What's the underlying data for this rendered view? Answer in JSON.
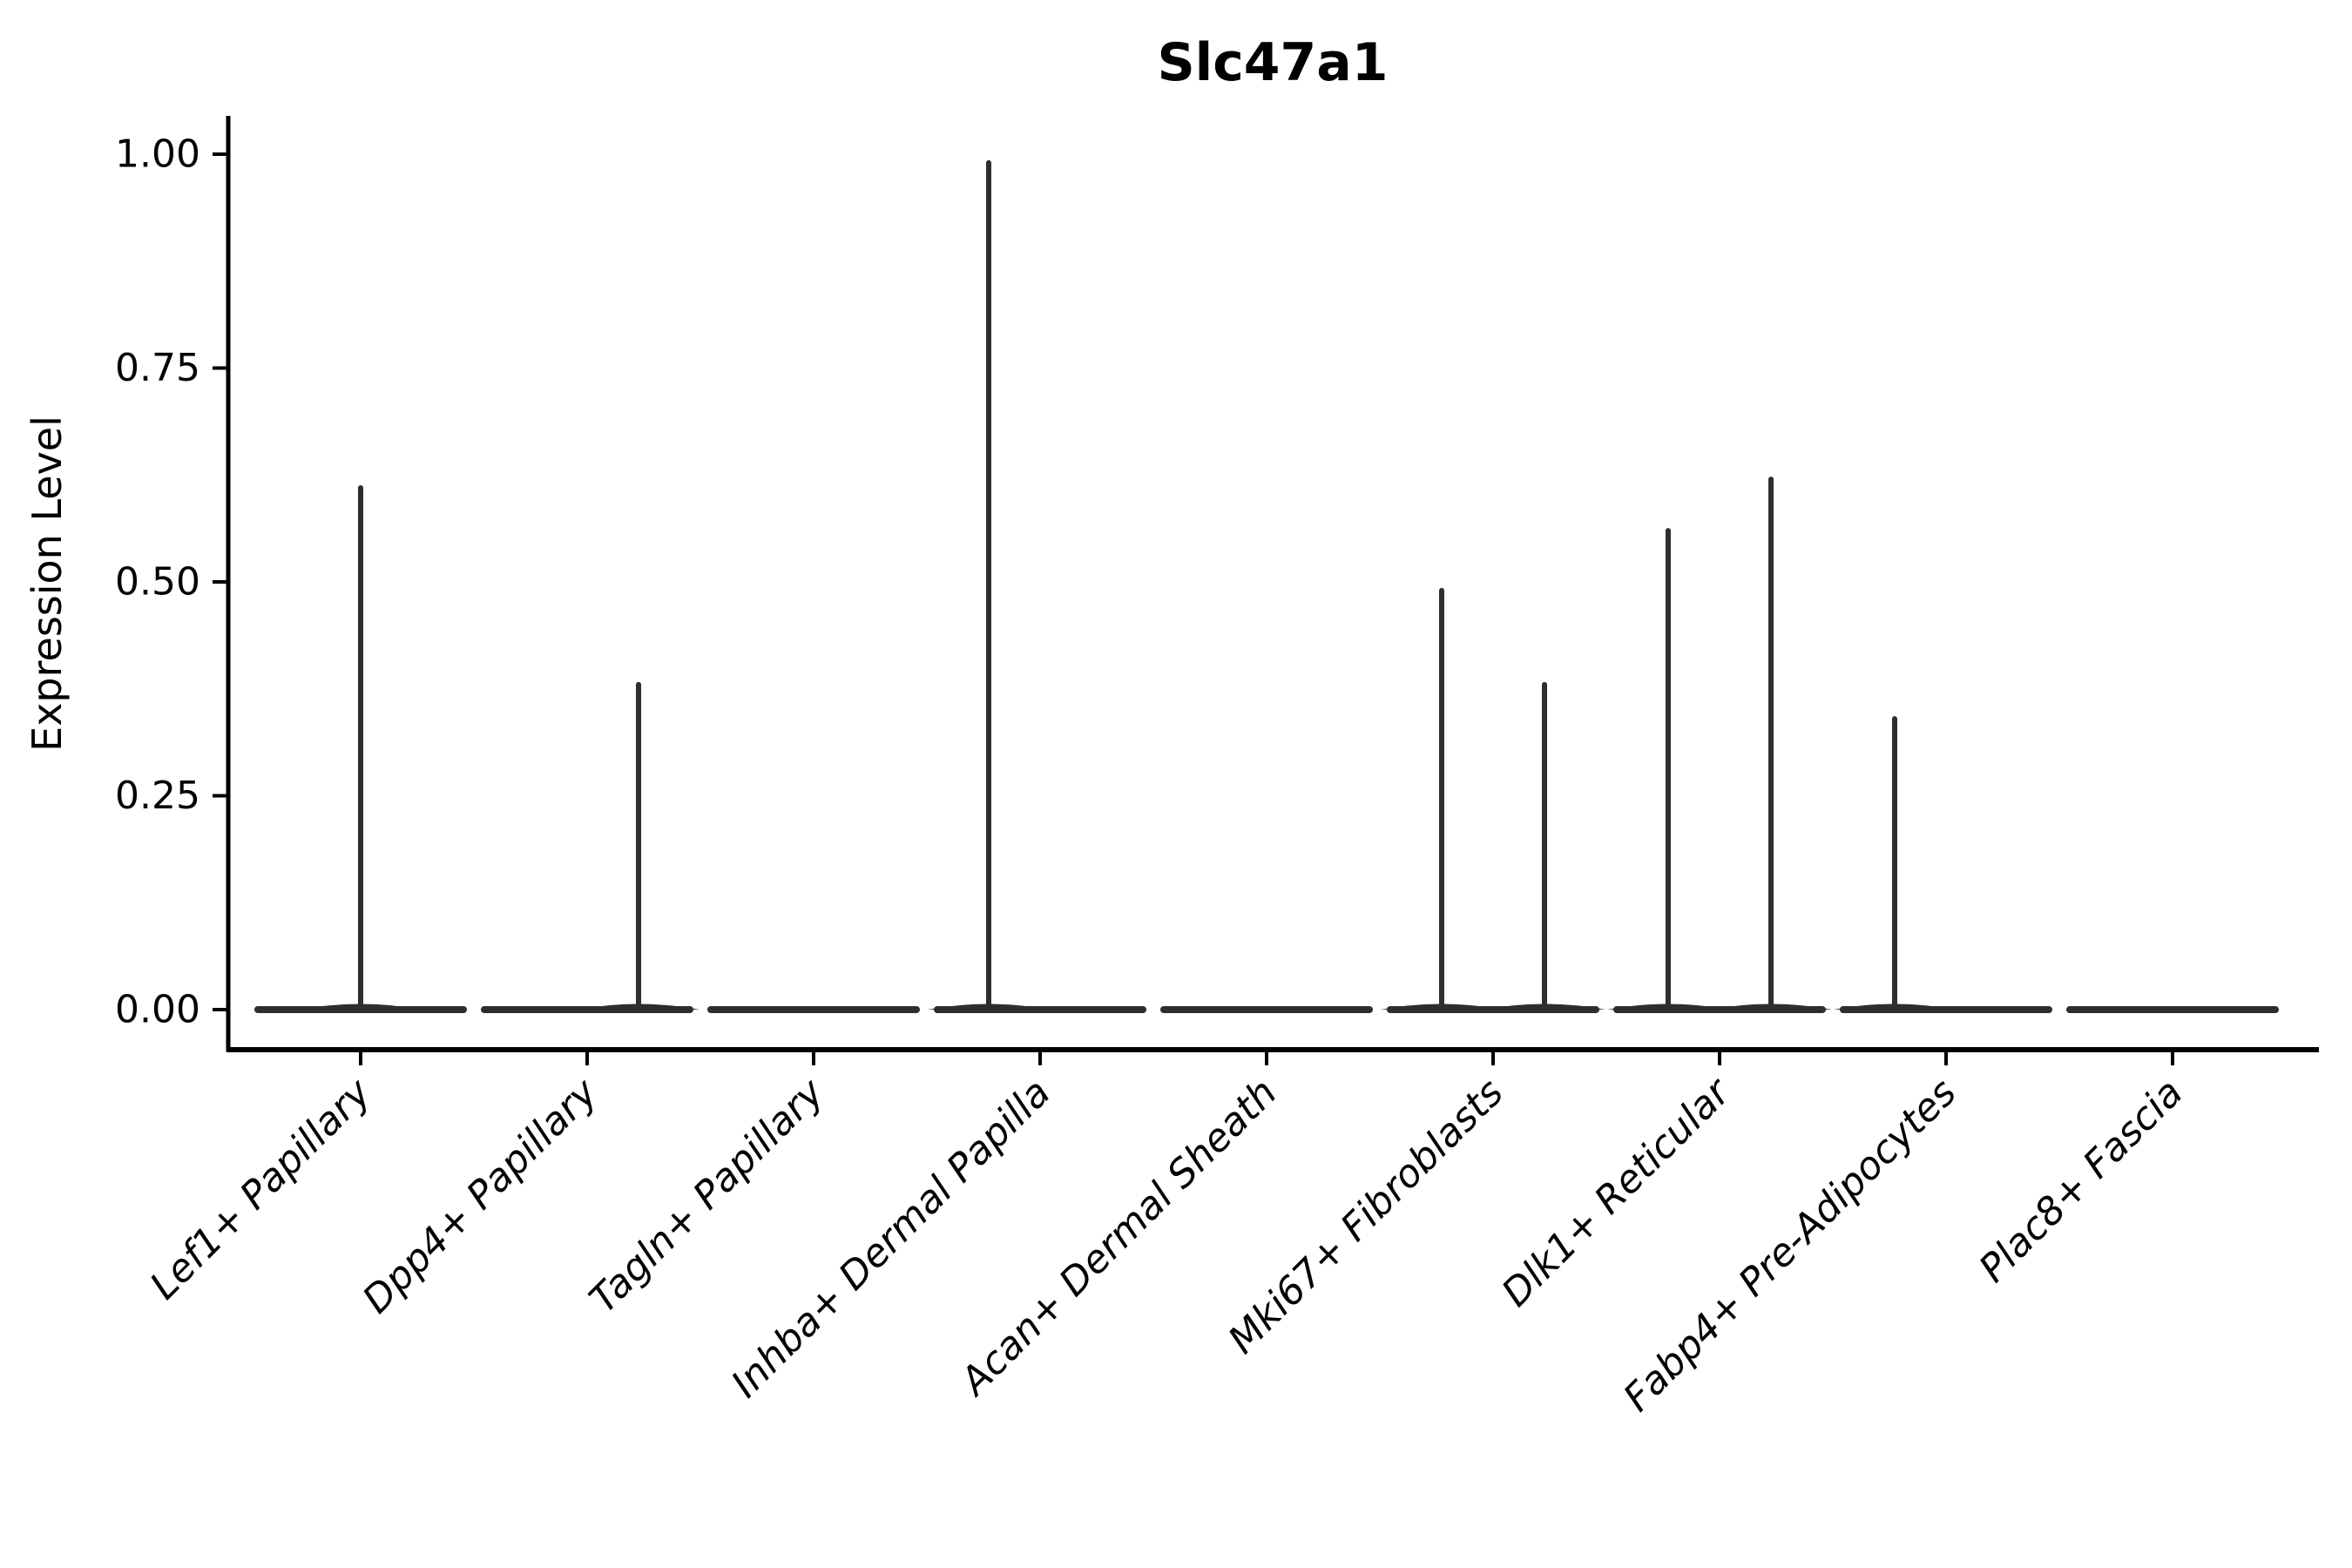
{
  "chart_data": {
    "type": "violin",
    "title": "Slc47a1",
    "xlabel": "",
    "ylabel": "Expression Level",
    "ylim": [
      0,
      1.0
    ],
    "yticks": [
      "0.00",
      "0.25",
      "0.50",
      "0.75",
      "1.00"
    ],
    "grid": false,
    "legend": "none",
    "categories": [
      "Lef1+ Papillary",
      "Dpp4+ Papillary",
      "Tagln+ Papillary",
      "Inhba+ Dermal Papilla",
      "Acan+ Dermal Sheath",
      "Mki67+ Fibroblasts",
      "Dlk1+ Reticular",
      "Fabp4+ Pre-Adipocytes",
      "Plac8+ Fascia"
    ],
    "violins": [
      {
        "category": "Lef1+ Papillary",
        "baseline_value": 0.0,
        "spikes": [
          {
            "x_offset": 0.0,
            "max_value": 0.61
          }
        ]
      },
      {
        "category": "Dpp4+ Papillary",
        "baseline_value": 0.0,
        "spikes": [
          {
            "x_offset": 0.227,
            "max_value": 0.38
          }
        ]
      },
      {
        "category": "Tagln+ Papillary",
        "baseline_value": 0.0,
        "spikes": []
      },
      {
        "category": "Inhba+ Dermal Papilla",
        "baseline_value": 0.0,
        "spikes": [
          {
            "x_offset": -0.227,
            "max_value": 0.99
          }
        ]
      },
      {
        "category": "Acan+ Dermal Sheath",
        "baseline_value": 0.0,
        "spikes": []
      },
      {
        "category": "Mki67+ Fibroblasts",
        "baseline_value": 0.0,
        "spikes": [
          {
            "x_offset": -0.227,
            "max_value": 0.49
          },
          {
            "x_offset": 0.227,
            "max_value": 0.38
          }
        ]
      },
      {
        "category": "Dlk1+ Reticular",
        "baseline_value": 0.0,
        "spikes": [
          {
            "x_offset": -0.227,
            "max_value": 0.56
          },
          {
            "x_offset": 0.227,
            "max_value": 0.62
          }
        ]
      },
      {
        "category": "Fabp4+ Pre-Adipocytes",
        "baseline_value": 0.0,
        "spikes": [
          {
            "x_offset": -0.227,
            "max_value": 0.34
          }
        ]
      },
      {
        "category": "Plac8+ Fascia",
        "baseline_value": 0.0,
        "spikes": []
      }
    ],
    "style": {
      "violin_color": "#2e2e2e",
      "axis_color": "#000000",
      "background_color": "#ffffff",
      "x_label_rotation_deg": 45,
      "x_label_style": "italic"
    }
  }
}
